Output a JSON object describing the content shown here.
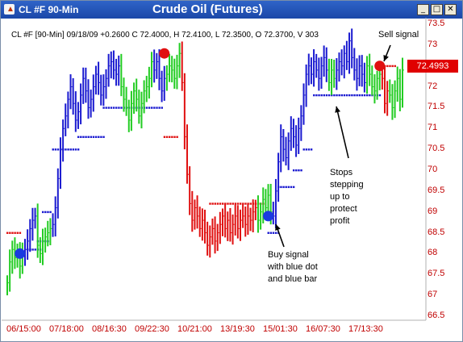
{
  "window": {
    "title": "CL #F 90-Min",
    "icon": "chart-app-icon",
    "buttons": [
      "minimize-icon",
      "maximize-icon",
      "close-icon"
    ]
  },
  "header": {
    "chart_title": "Crude Oil (Futures)",
    "info_line": "CL #F [90-Min] 09/18/09 +0.2600 C 72.4000, H 72.4100, L 72.3500, O 72.3700, V 303"
  },
  "price_marker": {
    "value": "72.4993",
    "color": "#e00000"
  },
  "annotations": {
    "sell_signal": "Sell signal",
    "buy_signal": [
      "Buy signal",
      "with blue dot",
      "and blue bar"
    ],
    "stops": [
      "Stops",
      "stepping",
      "up to",
      "protect",
      "profit"
    ]
  },
  "colors": {
    "up_trend": "#1a1ad0",
    "neutral": "#22cc22",
    "down_trend": "#e01010",
    "axis_labels": "#c00000"
  },
  "chart_data": {
    "type": "bar",
    "subtype": "ohlc-price-bars",
    "title": "Crude Oil (Futures)",
    "xlabel": "",
    "ylabel": "",
    "ylim": [
      66.5,
      73.5
    ],
    "y_ticks": [
      "73.5",
      "73",
      "72.5",
      "72",
      "71.5",
      "71",
      "70.5",
      "70",
      "69.5",
      "69",
      "68.5",
      "68",
      "67.5",
      "67",
      "66.5"
    ],
    "x_ticks": [
      "06/15:00",
      "07/18:00",
      "08/16:30",
      "09/22:30",
      "10/21:00",
      "13/19:30",
      "15/01:30",
      "16/07:30",
      "17/13:30"
    ],
    "grid": false,
    "segments": [
      {
        "state": "neutral",
        "bars": 7,
        "points": [
          67.3,
          67.8,
          68.1,
          67.9,
          68.0,
          67.7,
          68.0
        ]
      },
      {
        "state": "up",
        "bars": 5,
        "points": [
          68.1,
          68.3,
          68.6,
          68.8,
          68.9
        ]
      },
      {
        "state": "neutral",
        "bars": 6,
        "points": [
          68.2,
          68.0,
          68.3,
          68.4,
          68.5,
          68.6
        ]
      },
      {
        "state": "up",
        "bars": 27,
        "points": [
          68.7,
          69.1,
          69.8,
          70.5,
          71.0,
          71.3,
          71.7,
          72.0,
          71.6,
          71.2,
          71.4,
          71.8,
          72.2,
          71.9,
          71.5,
          71.7,
          72.0,
          72.3,
          72.1,
          71.8,
          72.0,
          72.2,
          72.5,
          72.6,
          72.4,
          72.3,
          72.5
        ]
      },
      {
        "state": "neutral",
        "bars": 13,
        "points": [
          72.0,
          71.7,
          71.5,
          71.2,
          71.6,
          71.9,
          71.7,
          71.3,
          71.6,
          71.9,
          72.0,
          72.2,
          72.6
        ]
      },
      {
        "state": "up",
        "bars": 5,
        "points": [
          72.4,
          72.6,
          72.2,
          71.9,
          72.2
        ]
      },
      {
        "state": "neutral",
        "bars": 6,
        "points": [
          72.3,
          72.5,
          72.4,
          72.2,
          72.5,
          72.8
        ]
      },
      {
        "state": "down",
        "bars": 30,
        "points": [
          72.1,
          70.8,
          69.9,
          69.2,
          68.8,
          69.1,
          68.9,
          68.6,
          68.8,
          68.5,
          68.2,
          68.4,
          68.6,
          68.3,
          68.5,
          68.7,
          68.9,
          68.6,
          68.8,
          68.5,
          68.7,
          68.9,
          68.6,
          68.8,
          68.9,
          68.7,
          68.9,
          68.8,
          69.0,
          69.1
        ]
      },
      {
        "state": "neutral",
        "bars": 6,
        "points": [
          68.8,
          69.0,
          69.3,
          69.1,
          69.4,
          69.0
        ]
      },
      {
        "state": "up",
        "bars": 22,
        "points": [
          68.9,
          69.5,
          70.2,
          70.8,
          70.5,
          70.3,
          70.7,
          71.0,
          70.8,
          70.6,
          71.0,
          71.3,
          71.8,
          72.3,
          72.5,
          72.3,
          72.6,
          72.4,
          72.2,
          72.5,
          72.7,
          72.4
        ]
      },
      {
        "state": "neutral",
        "bars": 3,
        "points": [
          72.1,
          72.4,
          72.2
        ]
      },
      {
        "state": "up",
        "bars": 12,
        "points": [
          72.4,
          72.6,
          72.5,
          72.8,
          72.6,
          73.1,
          72.7,
          72.4,
          72.2,
          72.5,
          72.3,
          72.1
        ]
      },
      {
        "state": "neutral",
        "bars": 6,
        "points": [
          72.5,
          72.3,
          72.0,
          71.9,
          72.2,
          72.3
        ]
      },
      {
        "state": "down",
        "bars": 3,
        "points": [
          72.2,
          71.6,
          71.9
        ]
      },
      {
        "state": "neutral",
        "bars": 6,
        "points": [
          71.8,
          71.5,
          71.9,
          72.2,
          71.7,
          72.4
        ]
      }
    ],
    "stop_lines": [
      {
        "state": "down",
        "value": 68.5,
        "from_bar": 0,
        "to_bar": 5
      },
      {
        "state": "up",
        "value": 68.1,
        "from_bar": 8,
        "to_bar": 13
      },
      {
        "state": "up",
        "value": 68.3,
        "from_bar": 12,
        "to_bar": 16
      },
      {
        "state": "up",
        "value": 69.0,
        "from_bar": 14,
        "to_bar": 17
      },
      {
        "state": "up",
        "value": 70.5,
        "from_bar": 18,
        "to_bar": 28
      },
      {
        "state": "up",
        "value": 70.8,
        "from_bar": 28,
        "to_bar": 38
      },
      {
        "state": "up",
        "value": 71.5,
        "from_bar": 38,
        "to_bar": 61
      },
      {
        "state": "down",
        "value": 70.8,
        "from_bar": 62,
        "to_bar": 67
      },
      {
        "state": "down",
        "value": 69.2,
        "from_bar": 80,
        "to_bar": 101
      },
      {
        "state": "up",
        "value": 68.5,
        "from_bar": 103,
        "to_bar": 107
      },
      {
        "state": "up",
        "value": 69.6,
        "from_bar": 107,
        "to_bar": 113
      },
      {
        "state": "up",
        "value": 70.0,
        "from_bar": 113,
        "to_bar": 116
      },
      {
        "state": "up",
        "value": 70.5,
        "from_bar": 117,
        "to_bar": 120
      },
      {
        "state": "up",
        "value": 71.8,
        "from_bar": 121,
        "to_bar": 147
      },
      {
        "state": "down",
        "value": 72.5,
        "from_bar": 147,
        "to_bar": 153
      }
    ],
    "signals": [
      {
        "type": "buy",
        "color": "#1a3ae0",
        "bar": 5,
        "value": 68.0
      },
      {
        "type": "sell",
        "color": "#e01010",
        "bar": 62,
        "value": 72.8
      },
      {
        "type": "buy",
        "color": "#1a3ae0",
        "bar": 103,
        "value": 68.9
      },
      {
        "type": "sell",
        "color": "#e01010",
        "bar": 147,
        "value": 72.5
      }
    ]
  }
}
